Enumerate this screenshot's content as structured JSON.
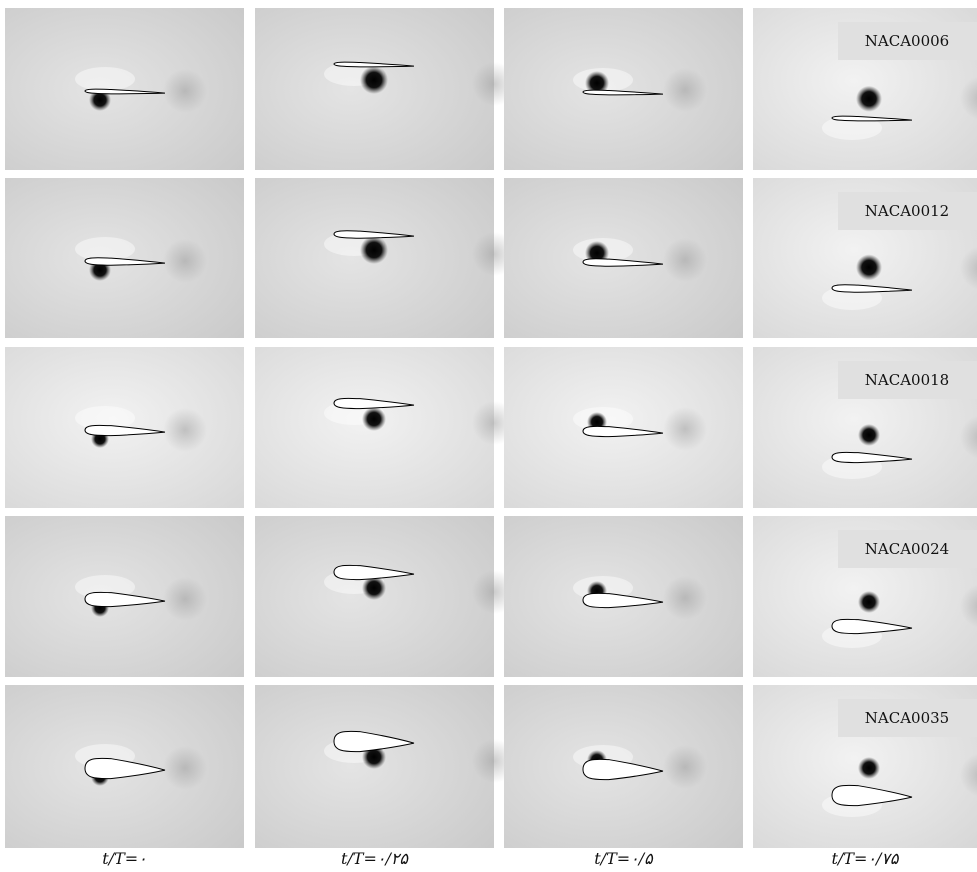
{
  "rows": [
    {
      "label": "NACA0006"
    },
    {
      "label": "NACA0012"
    },
    {
      "label": "NACA0018"
    },
    {
      "label": "NACA0024"
    },
    {
      "label": "NACA0035"
    }
  ],
  "columns": [
    {
      "label": "t/T=۰"
    },
    {
      "label": "t/T=۰/۲۵"
    },
    {
      "label": "t/T=۰/۵"
    },
    {
      "label": "t/T=۰/۷۵"
    }
  ]
}
